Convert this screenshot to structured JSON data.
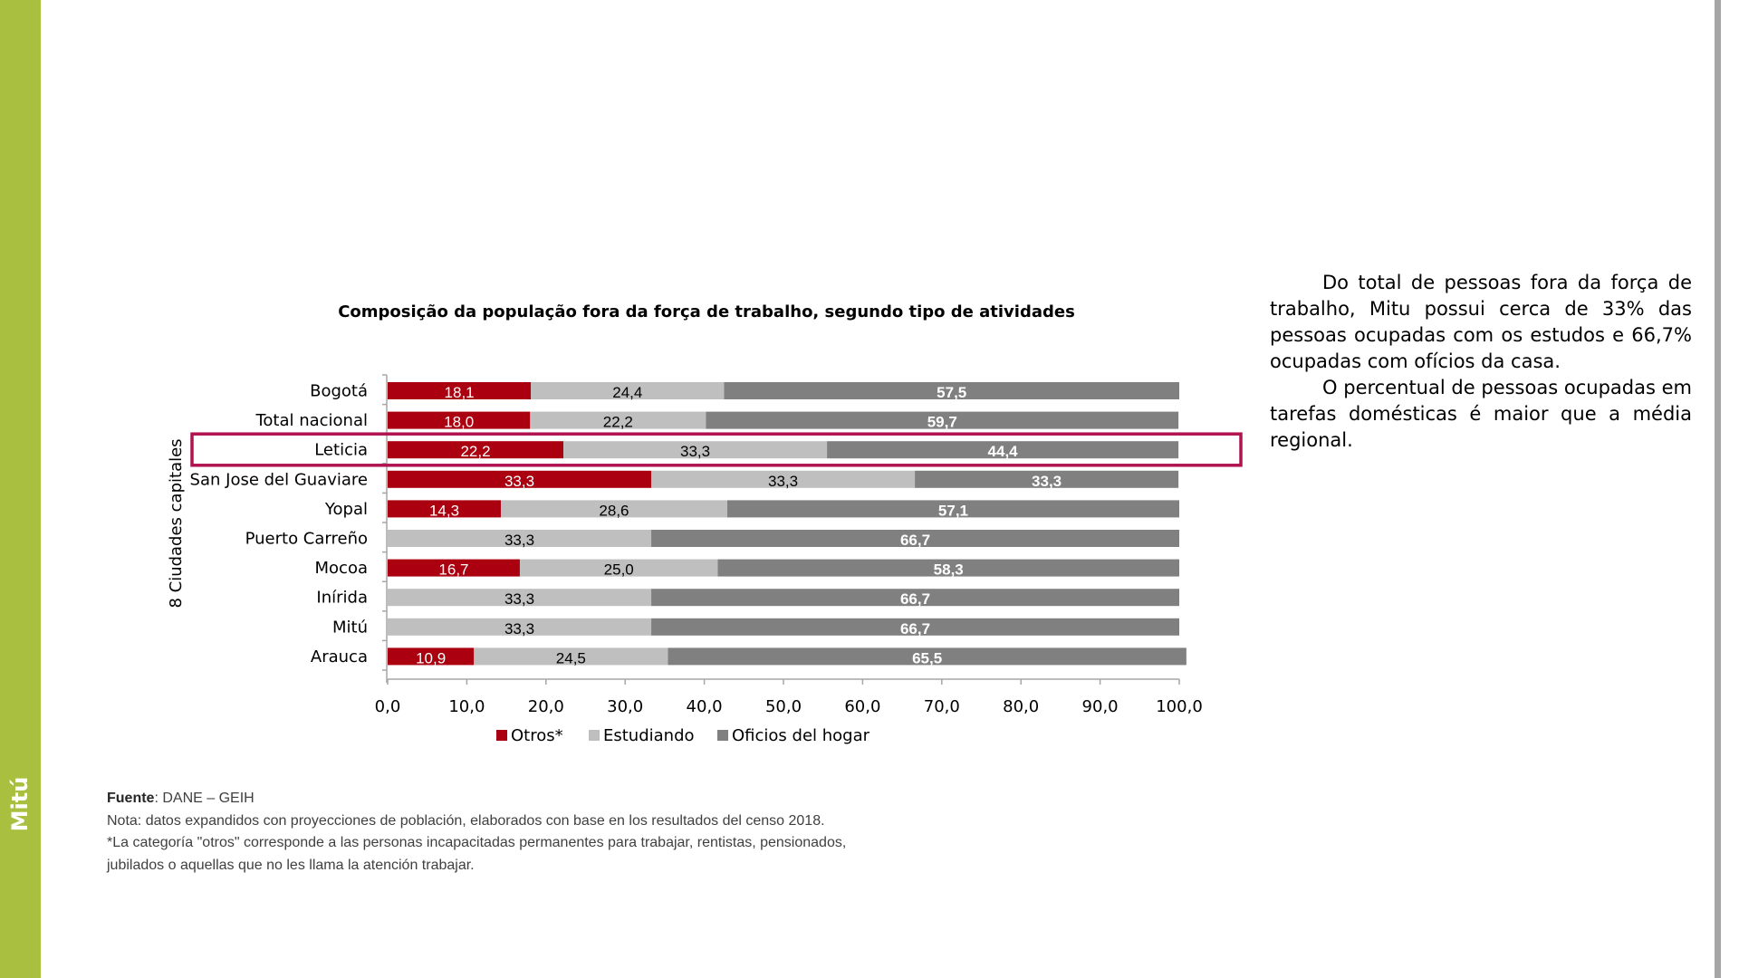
{
  "sidebar": {
    "label": "Mitú",
    "color": "#a9bf3f"
  },
  "chart_data": {
    "type": "bar",
    "orientation": "horizontal",
    "stacked": true,
    "title": "Composição da população fora da força de trabalho, segundo tipo de atividades",
    "ylabel": "8 Ciudades capitales",
    "xlabel": "",
    "xlim": [
      0,
      100
    ],
    "xticks": [
      "0,0",
      "10,0",
      "20,0",
      "30,0",
      "40,0",
      "50,0",
      "60,0",
      "70,0",
      "80,0",
      "90,0",
      "100,0"
    ],
    "xtick_values": [
      0,
      10,
      20,
      30,
      40,
      50,
      60,
      70,
      80,
      90,
      100
    ],
    "grid": false,
    "legend_position": "bottom",
    "categories": [
      "Bogotá",
      "Total nacional",
      "Leticia",
      "San Jose del Guaviare",
      "Yopal",
      "Puerto Carreño",
      "Mocoa",
      "Inírida",
      "Mitú",
      "Arauca"
    ],
    "highlighted_category": "Leticia",
    "highlight_color": "#b0134f",
    "series": [
      {
        "name": "Otros*",
        "color": "#ab0010",
        "label_color": "#ffffff",
        "values": [
          18.1,
          18.0,
          22.2,
          33.3,
          14.3,
          0,
          16.7,
          0,
          0,
          10.9
        ],
        "labels": [
          "18,1",
          "18,0",
          "22,2",
          "33,3",
          "14,3",
          "0",
          "16,7",
          "0",
          "0",
          "10,9"
        ]
      },
      {
        "name": "Estudiando",
        "color": "#bfbfbf",
        "label_color": "#000000",
        "values": [
          24.4,
          22.2,
          33.3,
          33.3,
          28.6,
          33.3,
          25.0,
          33.3,
          33.3,
          24.5
        ],
        "labels": [
          "24,4",
          "22,2",
          "33,3",
          "33,3",
          "28,6",
          "33,3",
          "25,0",
          "33,3",
          "33,3",
          "24,5"
        ]
      },
      {
        "name": "Oficios del hogar",
        "color": "#808080",
        "label_color": "#ffffff",
        "values": [
          57.5,
          59.7,
          44.4,
          33.3,
          57.1,
          66.7,
          58.3,
          66.7,
          66.7,
          65.5
        ],
        "labels": [
          "57,5",
          "59,7",
          "44,4",
          "33,3",
          "57,1",
          "66,7",
          "58,3",
          "66,7",
          "66,7",
          "65,5"
        ]
      }
    ]
  },
  "body_text": {
    "paragraphs": [
      "Do total de pessoas fora da força de trabalho, Mitu possui cerca de 33% das pessoas ocupadas com os estudos e 66,7% ocupadas com ofícios da casa.",
      "O percentual de pessoas ocupadas em tarefas domésticas é maior que a média regional."
    ]
  },
  "footer": {
    "source_label": "Fuente",
    "source_value": ": DANE – GEIH",
    "note": "Nota: datos expandidos con proyecciones de población, elaborados con base en los resultados del censo 2018.",
    "footnote_line1": "*La categoría \"otros\" corresponde a las personas incapacitadas permanentes para trabajar, rentistas, pensionados,",
    "footnote_line2": "jubilados o aquellas que no les llama la atención trabajar."
  }
}
